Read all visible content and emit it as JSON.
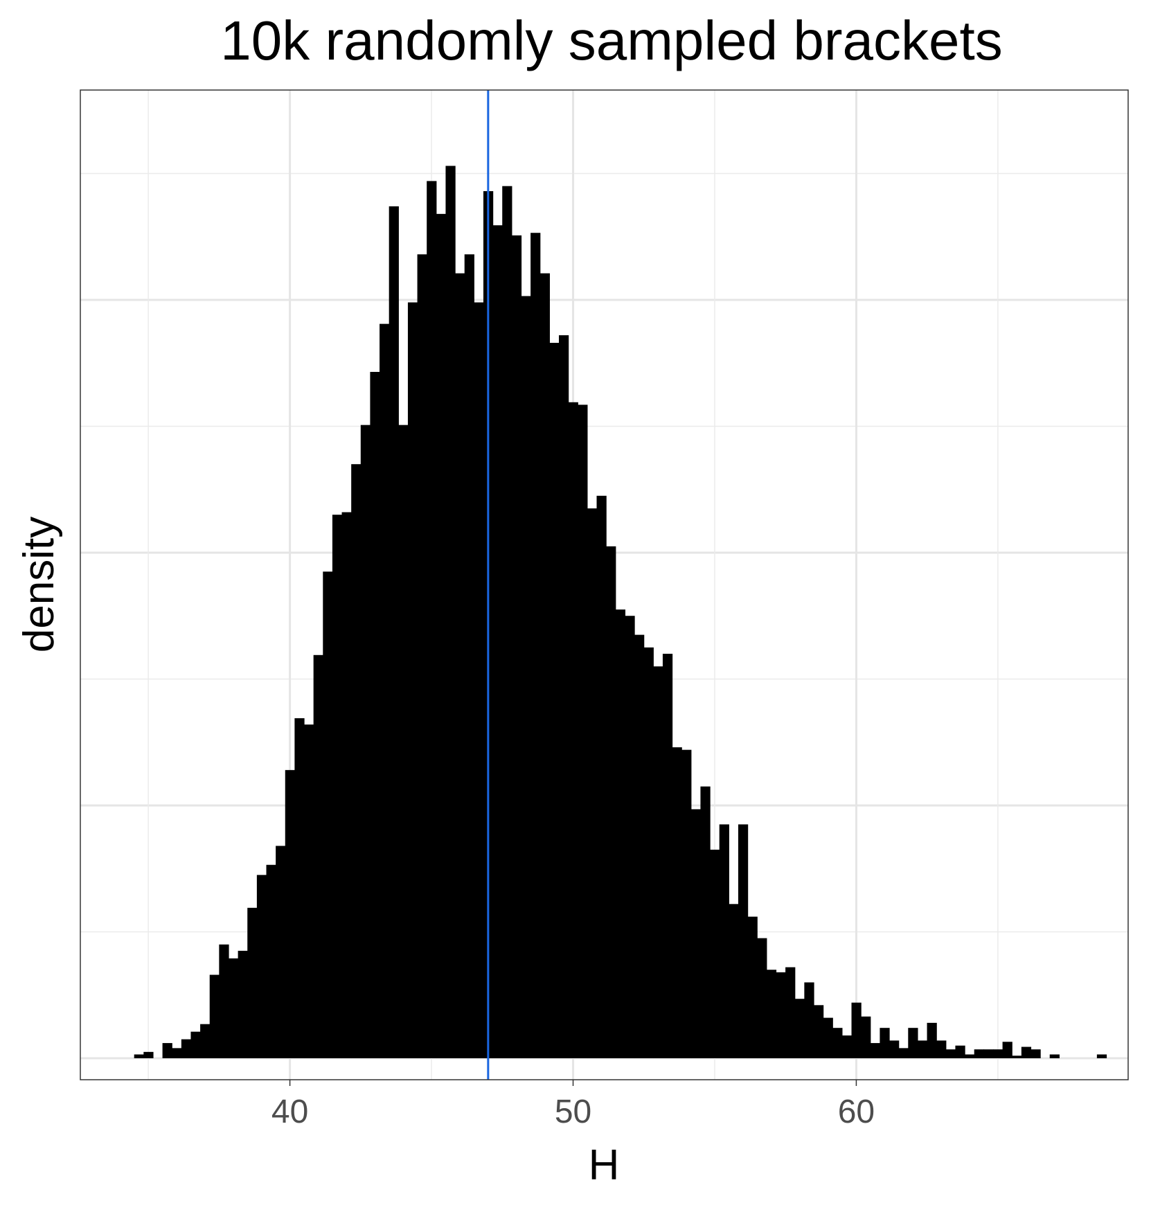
{
  "chart_data": {
    "type": "histogram",
    "title": "10k randomly sampled brackets",
    "xlabel": "H",
    "ylabel": "density",
    "xlim": [
      32.6,
      69.6
    ],
    "ylim": [
      -0.0017,
      0.0766
    ],
    "x_ticks": [
      40,
      50,
      60
    ],
    "x_tick_labels": [
      "40",
      "50",
      "60"
    ],
    "y_tick_labels_shown": false,
    "grid": true,
    "bin_width": 0.3333,
    "bins_start": 34.5,
    "bar_color": "#000000",
    "vline": {
      "x": 47.0,
      "color": "#1a66e0"
    },
    "values": [
      0.0003,
      0.0005,
      0.0,
      0.0012,
      0.0008,
      0.0015,
      0.0021,
      0.0027,
      0.0066,
      0.009,
      0.0079,
      0.0085,
      0.0119,
      0.0145,
      0.0153,
      0.0168,
      0.0228,
      0.0269,
      0.0264,
      0.0319,
      0.0385,
      0.043,
      0.0432,
      0.047,
      0.0501,
      0.0543,
      0.0581,
      0.0674,
      0.0501,
      0.0598,
      0.0636,
      0.0694,
      0.0668,
      0.0706,
      0.0621,
      0.0636,
      0.0598,
      0.0686,
      0.0659,
      0.069,
      0.0651,
      0.0603,
      0.0653,
      0.0621,
      0.0566,
      0.0572,
      0.0519,
      0.0517,
      0.0435,
      0.0445,
      0.0405,
      0.0355,
      0.035,
      0.0335,
      0.0325,
      0.031,
      0.032,
      0.0246,
      0.0244,
      0.0197,
      0.0215,
      0.0165,
      0.0185,
      0.0122,
      0.0185,
      0.0112,
      0.0095,
      0.007,
      0.0068,
      0.0072,
      0.0047,
      0.006,
      0.0042,
      0.0032,
      0.0024,
      0.0018,
      0.0044,
      0.0033,
      0.0012,
      0.0024,
      0.0014,
      0.0008,
      0.0024,
      0.0014,
      0.0028,
      0.0014,
      0.0007,
      0.001,
      0.0003,
      0.0007,
      0.0007,
      0.0007,
      0.0013,
      0.0002,
      0.0009,
      0.0007,
      0.0,
      0.0003,
      0.0,
      0.0,
      0.0,
      0.0,
      0.0003,
      0.0,
      0.0,
      0.0,
      0.0,
      0.0,
      0.0002
    ]
  }
}
